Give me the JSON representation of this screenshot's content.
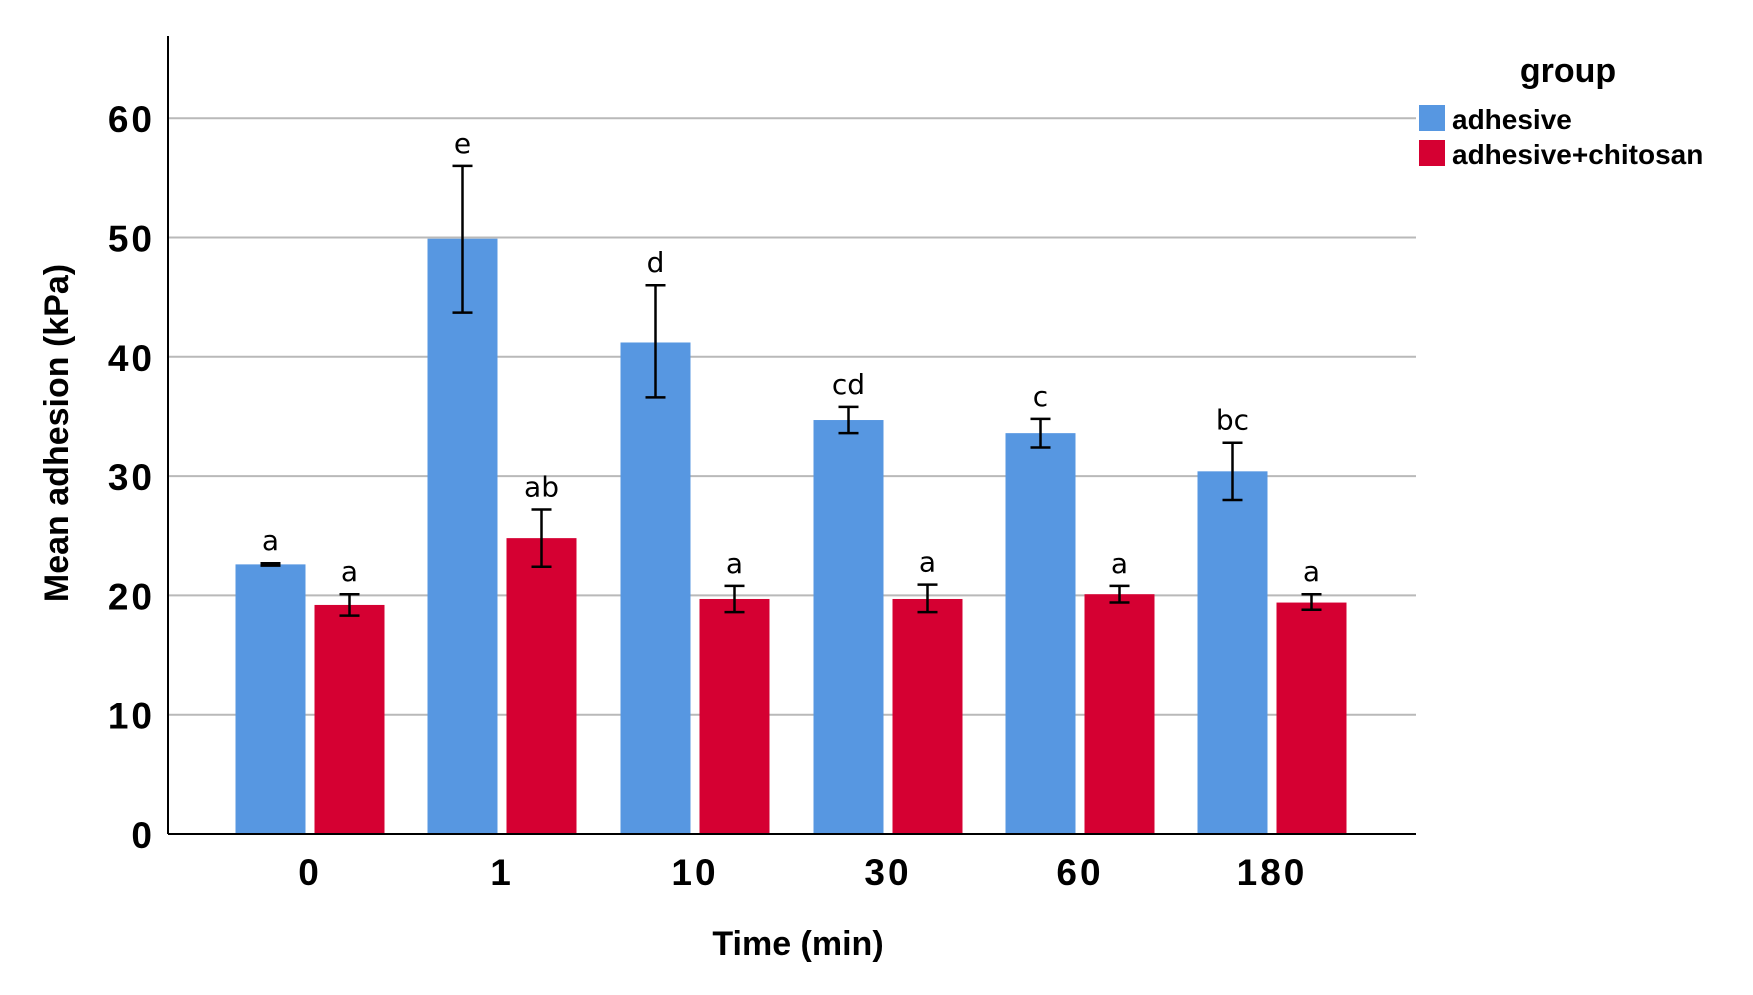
{
  "chart_data": {
    "type": "bar",
    "xlabel": "Time (min)",
    "ylabel": "Mean adhesion (kPa)",
    "categories": [
      "0",
      "1",
      "10",
      "30",
      "60",
      "180"
    ],
    "ylim": [
      0,
      67
    ],
    "yticks": [
      0,
      10,
      20,
      30,
      40,
      50,
      60
    ],
    "grid": true,
    "legend": {
      "title": "group",
      "placement": "top-right"
    },
    "series": [
      {
        "name": "adhesive",
        "color": "#5797e1",
        "values": [
          22.6,
          49.9,
          41.2,
          34.7,
          33.6,
          30.4
        ],
        "err_low": [
          22.5,
          43.7,
          36.6,
          33.6,
          32.4,
          28.0
        ],
        "err_high": [
          22.7,
          56.0,
          46.0,
          35.8,
          34.8,
          32.8
        ],
        "labels": [
          "a",
          "e",
          "d",
          "cd",
          "c",
          "bc"
        ]
      },
      {
        "name": "adhesive+chitosan",
        "color": "#d50032",
        "values": [
          19.2,
          24.8,
          19.7,
          19.7,
          20.1,
          19.4
        ],
        "err_low": [
          18.3,
          22.4,
          18.6,
          18.6,
          19.4,
          18.8
        ],
        "err_high": [
          20.1,
          27.2,
          20.8,
          20.9,
          20.8,
          20.1
        ],
        "labels": [
          "a",
          "ab",
          "a",
          "a",
          "a",
          "a"
        ]
      }
    ]
  }
}
